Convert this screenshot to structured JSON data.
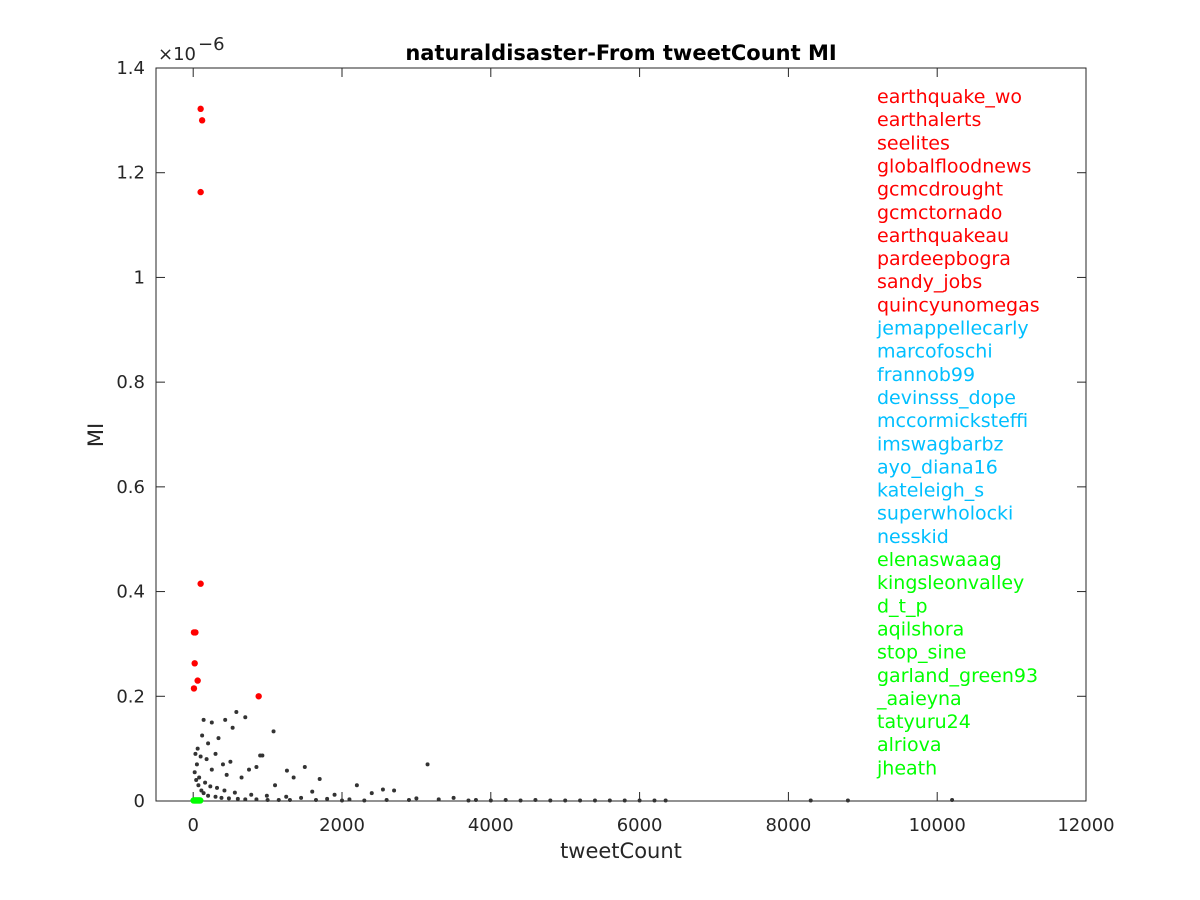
{
  "chart_data": {
    "type": "scatter",
    "title": "naturaldisaster-From tweetCount MI",
    "xlabel": "tweetCount",
    "ylabel": "MI",
    "y_exponent_label": "×10",
    "y_exponent_power": "−6",
    "xlim": [
      -500,
      12000
    ],
    "ylim": [
      0,
      1.4
    ],
    "x_ticks": [
      0,
      2000,
      4000,
      6000,
      8000,
      10000,
      12000
    ],
    "x_tick_labels": [
      "0",
      "2000",
      "4000",
      "6000",
      "8000",
      "10000",
      "12000"
    ],
    "y_ticks": [
      0,
      0.2,
      0.4,
      0.6,
      0.8,
      1,
      1.2,
      1.4
    ],
    "y_tick_labels": [
      "0",
      "0.2",
      "0.4",
      "0.6",
      "0.8",
      "1",
      "1.2",
      "1.4"
    ],
    "grid": false,
    "colors": {
      "top": "#ff0000",
      "mid": "#00bfff",
      "low": "#00ff00",
      "other": "#333333"
    },
    "series": [
      {
        "group": "top",
        "color": "#ff0000",
        "points": [
          {
            "x": 100,
            "y": 1.322
          },
          {
            "x": 120,
            "y": 1.3
          },
          {
            "x": 100,
            "y": 1.163
          },
          {
            "x": 100,
            "y": 0.415
          },
          {
            "x": 30,
            "y": 0.322
          },
          {
            "x": 10,
            "y": 0.322
          },
          {
            "x": 20,
            "y": 0.263
          },
          {
            "x": 60,
            "y": 0.23
          },
          {
            "x": 10,
            "y": 0.215
          },
          {
            "x": 880,
            "y": 0.2
          }
        ]
      },
      {
        "group": "others",
        "color": "#333333",
        "points": [
          {
            "x": 140,
            "y": 0.155
          },
          {
            "x": 250,
            "y": 0.15
          },
          {
            "x": 430,
            "y": 0.155
          },
          {
            "x": 580,
            "y": 0.17
          },
          {
            "x": 700,
            "y": 0.16
          },
          {
            "x": 530,
            "y": 0.14
          },
          {
            "x": 1080,
            "y": 0.133
          },
          {
            "x": 340,
            "y": 0.12
          },
          {
            "x": 120,
            "y": 0.125
          },
          {
            "x": 200,
            "y": 0.11
          },
          {
            "x": 60,
            "y": 0.1
          },
          {
            "x": 300,
            "y": 0.09
          },
          {
            "x": 930,
            "y": 0.087
          },
          {
            "x": 900,
            "y": 0.087
          },
          {
            "x": 850,
            "y": 0.065
          },
          {
            "x": 750,
            "y": 0.06
          },
          {
            "x": 500,
            "y": 0.075
          },
          {
            "x": 400,
            "y": 0.07
          },
          {
            "x": 1500,
            "y": 0.065
          },
          {
            "x": 1260,
            "y": 0.058
          },
          {
            "x": 1350,
            "y": 0.045
          },
          {
            "x": 1700,
            "y": 0.042
          },
          {
            "x": 3150,
            "y": 0.07
          },
          {
            "x": 2200,
            "y": 0.03
          },
          {
            "x": 2550,
            "y": 0.022
          },
          {
            "x": 2400,
            "y": 0.015
          },
          {
            "x": 2700,
            "y": 0.02
          },
          {
            "x": 3000,
            "y": 0.005
          },
          {
            "x": 3300,
            "y": 0.003
          },
          {
            "x": 3500,
            "y": 0.006
          },
          {
            "x": 3800,
            "y": 0.002
          },
          {
            "x": 4200,
            "y": 0.002
          },
          {
            "x": 4600,
            "y": 0.002
          },
          {
            "x": 5000,
            "y": 0.001
          },
          {
            "x": 5400,
            "y": 0.001
          },
          {
            "x": 5800,
            "y": 0.001
          },
          {
            "x": 6200,
            "y": 0.001
          },
          {
            "x": 6350,
            "y": 0.001
          },
          {
            "x": 8300,
            "y": 0.001
          },
          {
            "x": 8800,
            "y": 0.001
          },
          {
            "x": 10200,
            "y": 0.002
          },
          {
            "x": 1900,
            "y": 0.012
          },
          {
            "x": 1600,
            "y": 0.018
          },
          {
            "x": 1100,
            "y": 0.03
          },
          {
            "x": 650,
            "y": 0.045
          },
          {
            "x": 450,
            "y": 0.05
          },
          {
            "x": 250,
            "y": 0.06
          },
          {
            "x": 180,
            "y": 0.08
          },
          {
            "x": 100,
            "y": 0.085
          },
          {
            "x": 50,
            "y": 0.07
          },
          {
            "x": 30,
            "y": 0.09
          },
          {
            "x": 80,
            "y": 0.045
          },
          {
            "x": 160,
            "y": 0.035
          },
          {
            "x": 230,
            "y": 0.028
          },
          {
            "x": 320,
            "y": 0.025
          },
          {
            "x": 420,
            "y": 0.02
          },
          {
            "x": 560,
            "y": 0.016
          },
          {
            "x": 780,
            "y": 0.012
          },
          {
            "x": 990,
            "y": 0.01
          },
          {
            "x": 1250,
            "y": 0.008
          },
          {
            "x": 1450,
            "y": 0.006
          },
          {
            "x": 1800,
            "y": 0.004
          },
          {
            "x": 2100,
            "y": 0.003
          },
          {
            "x": 2600,
            "y": 0.002
          },
          {
            "x": 2900,
            "y": 0.002
          },
          {
            "x": 3700,
            "y": 0.001
          },
          {
            "x": 4000,
            "y": 0.001
          },
          {
            "x": 4400,
            "y": 0.001
          },
          {
            "x": 4800,
            "y": 0.001
          },
          {
            "x": 5200,
            "y": 0.001
          },
          {
            "x": 5600,
            "y": 0.001
          },
          {
            "x": 6000,
            "y": 0.001
          },
          {
            "x": 40,
            "y": 0.04
          },
          {
            "x": 70,
            "y": 0.03
          },
          {
            "x": 20,
            "y": 0.055
          },
          {
            "x": 110,
            "y": 0.02
          },
          {
            "x": 140,
            "y": 0.015
          },
          {
            "x": 200,
            "y": 0.01
          },
          {
            "x": 300,
            "y": 0.008
          },
          {
            "x": 380,
            "y": 0.006
          },
          {
            "x": 480,
            "y": 0.005
          },
          {
            "x": 600,
            "y": 0.004
          },
          {
            "x": 700,
            "y": 0.003
          },
          {
            "x": 850,
            "y": 0.003
          },
          {
            "x": 1000,
            "y": 0.002
          },
          {
            "x": 1150,
            "y": 0.002
          },
          {
            "x": 1300,
            "y": 0.002
          },
          {
            "x": 1650,
            "y": 0.002
          },
          {
            "x": 2000,
            "y": 0.001
          },
          {
            "x": 2300,
            "y": 0.001
          }
        ]
      },
      {
        "group": "low",
        "color": "#00ff00",
        "points": [
          {
            "x": 5,
            "y": 0.001
          },
          {
            "x": 15,
            "y": 0.001
          },
          {
            "x": 25,
            "y": 0.001
          },
          {
            "x": 35,
            "y": 0.001
          },
          {
            "x": 45,
            "y": 0.001
          },
          {
            "x": 55,
            "y": 0.001
          },
          {
            "x": 65,
            "y": 0.001
          },
          {
            "x": 75,
            "y": 0.001
          },
          {
            "x": 85,
            "y": 0.001
          },
          {
            "x": 95,
            "y": 0.001
          }
        ]
      }
    ],
    "user_labels": [
      {
        "text": "earthquake_wo",
        "color": "#ff0000"
      },
      {
        "text": "earthalerts",
        "color": "#ff0000"
      },
      {
        "text": "seelites",
        "color": "#ff0000"
      },
      {
        "text": "globalfloodnews",
        "color": "#ff0000"
      },
      {
        "text": "gcmcdrought",
        "color": "#ff0000"
      },
      {
        "text": "gcmctornado",
        "color": "#ff0000"
      },
      {
        "text": "earthquakeau",
        "color": "#ff0000"
      },
      {
        "text": "pardeepbogra",
        "color": "#ff0000"
      },
      {
        "text": "sandy_jobs",
        "color": "#ff0000"
      },
      {
        "text": "quincyunomegas",
        "color": "#ff0000"
      },
      {
        "text": "jemappellecarly",
        "color": "#00bfff"
      },
      {
        "text": "marcofoschi",
        "color": "#00bfff"
      },
      {
        "text": "frannob99",
        "color": "#00bfff"
      },
      {
        "text": "devinsss_dope",
        "color": "#00bfff"
      },
      {
        "text": "mccormicksteffi",
        "color": "#00bfff"
      },
      {
        "text": "imswagbarbz",
        "color": "#00bfff"
      },
      {
        "text": "ayo_diana16",
        "color": "#00bfff"
      },
      {
        "text": "kateleigh_s",
        "color": "#00bfff"
      },
      {
        "text": "superwholocki",
        "color": "#00bfff"
      },
      {
        "text": "nesskid",
        "color": "#00bfff"
      },
      {
        "text": "elenaswaaag",
        "color": "#00ff00"
      },
      {
        "text": "kingsleonvalley",
        "color": "#00ff00"
      },
      {
        "text": "d_t_p",
        "color": "#00ff00"
      },
      {
        "text": "aqilshora",
        "color": "#00ff00"
      },
      {
        "text": "stop_sine",
        "color": "#00ff00"
      },
      {
        "text": "garland_green93",
        "color": "#00ff00"
      },
      {
        "text": "_aaieyna",
        "color": "#00ff00"
      },
      {
        "text": "tatyuru24",
        "color": "#00ff00"
      },
      {
        "text": "alriova",
        "color": "#00ff00"
      },
      {
        "text": "jheath",
        "color": "#00ff00"
      }
    ]
  }
}
